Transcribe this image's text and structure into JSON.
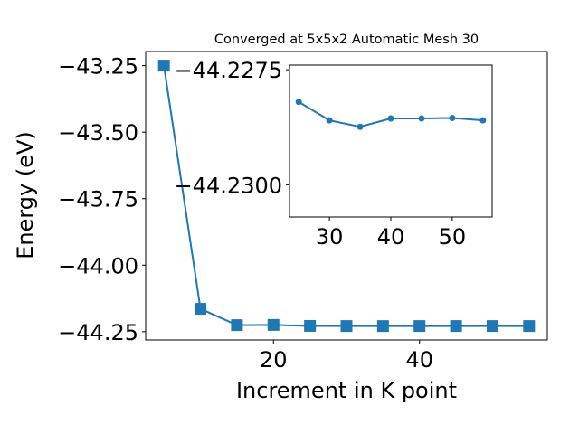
{
  "chart_data": [
    {
      "type": "line",
      "title": "Converged at 5x5x2 Automatic Mesh 30",
      "xlabel": "Increment in K point",
      "ylabel": "Energy (eV)",
      "x": [
        5,
        10,
        15,
        20,
        25,
        30,
        35,
        40,
        45,
        50,
        55
      ],
      "series": [
        {
          "values": [
            -43.25,
            -44.164,
            -44.2253,
            -44.2245,
            -44.2282,
            -44.2287,
            -44.2288,
            -44.2287,
            -44.2287,
            -44.2287,
            -44.2287
          ],
          "color": "#1f77b4",
          "marker": "square"
        }
      ],
      "xlim": [
        2.5,
        57.5
      ],
      "ylim": [
        -44.281,
        -43.197
      ],
      "xticks": [
        20,
        40
      ],
      "xtick_labels": [
        "20",
        "40"
      ],
      "yticks": [
        -43.25,
        -43.5,
        -43.75,
        -44.0,
        -44.25
      ],
      "ytick_labels": [
        "−43.25",
        "−43.50",
        "−43.75",
        "−44.00",
        "−44.25"
      ],
      "grid": false
    },
    {
      "type": "line",
      "title": "",
      "xlabel": "",
      "ylabel": "",
      "x": [
        25,
        30,
        35,
        40,
        45,
        50,
        55
      ],
      "series": [
        {
          "values": [
            -44.2282,
            -44.2286,
            -44.22874,
            -44.22856,
            -44.22856,
            -44.22855,
            -44.2286
          ],
          "color": "#1f77b4",
          "marker": "circle"
        }
      ],
      "xlim": [
        23.5,
        56.5
      ],
      "yticks": [
        -44.23,
        -44.2275
      ],
      "ytick_labels": [
        "−44.2300",
        "−44.2275"
      ],
      "xticks": [
        30,
        40,
        50
      ],
      "xtick_labels": [
        "30",
        "40",
        "50"
      ],
      "ylim": [
        -44.2307,
        -44.2274
      ],
      "grid": false
    }
  ]
}
